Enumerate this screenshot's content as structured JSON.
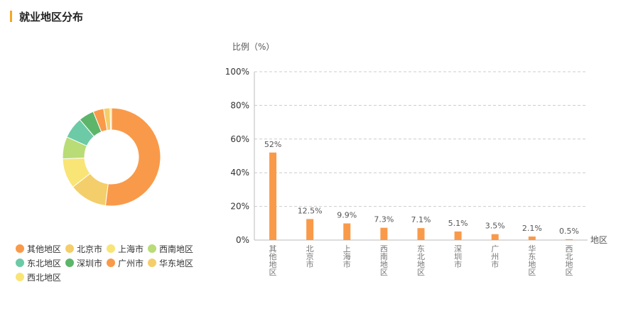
{
  "header": {
    "title": "就业地区分布"
  },
  "chart_data": [
    {
      "type": "pie",
      "subtype": "donut",
      "categories": [
        "其他地区",
        "北京市",
        "上海市",
        "西南地区",
        "东北地区",
        "深圳市",
        "广州市",
        "华东地区",
        "西北地区"
      ],
      "values": [
        52,
        12.5,
        9.9,
        7.3,
        7.1,
        5.1,
        3.5,
        2.1,
        0.5
      ],
      "colors": [
        "#f99a4a",
        "#f4ce6a",
        "#f9e476",
        "#b9dc77",
        "#6ccaa7",
        "#5db56a",
        "#f99a4a",
        "#f4ce6a",
        "#f9e476"
      ],
      "legend": "bottom"
    },
    {
      "type": "bar",
      "categories": [
        "其他地区",
        "北京市",
        "上海市",
        "西南地区",
        "东北地区",
        "深圳市",
        "广州市",
        "华东地区",
        "西北地区"
      ],
      "values": [
        52,
        12.5,
        9.9,
        7.3,
        7.1,
        5.1,
        3.5,
        2.1,
        0.5
      ],
      "value_labels": [
        "52%",
        "12.5%",
        "9.9%",
        "7.3%",
        "7.1%",
        "5.1%",
        "3.5%",
        "2.1%",
        "0.5%"
      ],
      "ylabel": "比例（%）",
      "xlabel": "地区",
      "ylim": [
        0,
        100
      ],
      "yticks": [
        "0%",
        "20%",
        "40%",
        "60%",
        "80%",
        "100%"
      ],
      "grid": true,
      "bar_color": "#f99a4a"
    }
  ]
}
